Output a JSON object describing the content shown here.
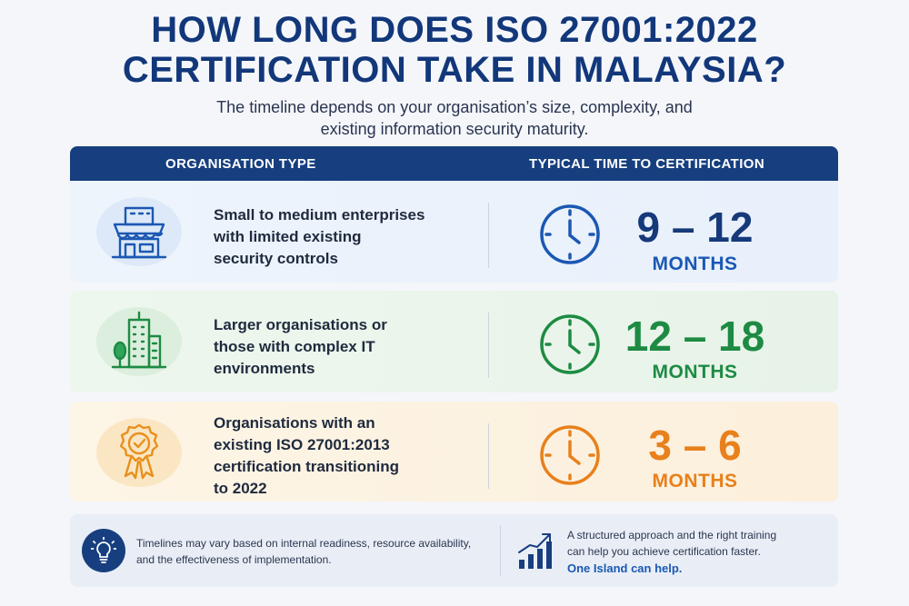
{
  "title": {
    "line1": "HOW LONG DOES ISO 27001:2022",
    "line2": "CERTIFICATION TAKE IN MALAYSIA?"
  },
  "subtitle": {
    "line1": "The timeline depends on your organisation’s size, complexity, and",
    "line2": "existing information security maturity."
  },
  "table": {
    "header": {
      "left": "ORGANISATION TYPE",
      "right": "TYPICAL TIME TO CERTIFICATION"
    },
    "rows": [
      {
        "icon": "storefront-icon",
        "desc_lines": [
          "Small to medium enterprises",
          "with limited existing",
          "security controls"
        ],
        "range": "9 – 12",
        "unit": "MONTHS",
        "color": "#16397a"
      },
      {
        "icon": "office-building-icon",
        "desc_lines": [
          "Larger organisations or",
          "those with complex IT",
          "environments"
        ],
        "range": "12 – 18",
        "unit": "MONTHS",
        "color": "#1d8b43"
      },
      {
        "icon": "award-badge-icon",
        "desc_lines": [
          "Organisations with an",
          "existing ISO 27001:2013",
          "certification transitioning",
          "to 2022"
        ],
        "range": "3 – 6",
        "unit": "MONTHS",
        "color": "#e8801c"
      }
    ]
  },
  "footer": {
    "icon_left": "lightbulb-icon",
    "note_line1": "Timelines may vary based on internal readiness, resource availability,",
    "note_line2": "and the effectiveness of implementation.",
    "icon_right": "growth-chart-icon",
    "cta_line1": "A structured approach and the right training",
    "cta_line2": "can help you achieve certification faster.",
    "cta_strong": "One Island can help."
  }
}
